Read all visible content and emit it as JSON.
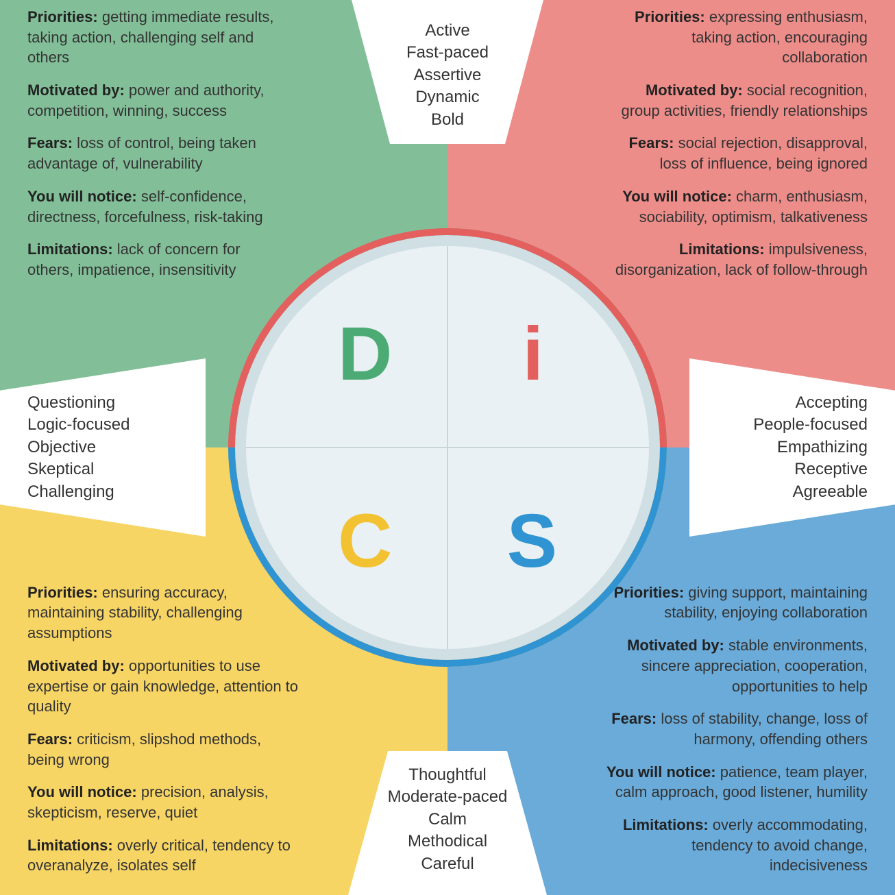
{
  "colors": {
    "d_bg": "#82bf98",
    "i_bg": "#ed8d8a",
    "c_bg": "#f7d565",
    "s_bg": "#6aabd9",
    "d_letter": "#4cab74",
    "i_letter": "#e3605e",
    "c_letter": "#f2c233",
    "s_letter": "#2f94d1",
    "circle_outer": "#d0dfe3",
    "circle_inner": "#e9f1f4",
    "text": "#333333"
  },
  "letters": {
    "d": "D",
    "i": "i",
    "c": "C",
    "s": "S"
  },
  "axis": {
    "top": [
      "Active",
      "Fast-paced",
      "Assertive",
      "Dynamic",
      "Bold"
    ],
    "bottom": [
      "Thoughtful",
      "Moderate-paced",
      "Calm",
      "Methodical",
      "Careful"
    ],
    "left": [
      "Questioning",
      "Logic-focused",
      "Objective",
      "Skeptical",
      "Challenging"
    ],
    "right": [
      "Accepting",
      "People-focused",
      "Empathizing",
      "Receptive",
      "Agreeable"
    ]
  },
  "quadrants": {
    "d": {
      "priorities": "getting immediate results, taking action, challenging self and others",
      "motivated": "power and authority, competition, winning, success",
      "fears": "loss of control, being taken advantage of, vulnerability",
      "notice": "self-confidence, directness, forcefulness, risk-taking",
      "limitations": "lack of concern for others, impatience, insensitivity"
    },
    "i": {
      "priorities": "expressing enthusiasm, taking action, encouraging collaboration",
      "motivated": "social recognition, group activities, friendly relationships",
      "fears": "social rejection, disapproval, loss of influence, being ignored",
      "notice": "charm, enthusiasm, sociability, optimism, talkativeness",
      "limitations": "impulsiveness, disorganization, lack of follow-through"
    },
    "c": {
      "priorities": "ensuring accuracy, maintaining stability, challenging assumptions",
      "motivated": "opportunities to use expertise or gain knowledge, attention to quality",
      "fears": "criticism, slipshod methods, being wrong",
      "notice": "precision, analysis, skepticism, reserve, quiet",
      "limitations": "overly critical, tendency to overanalyze, isolates self"
    },
    "s": {
      "priorities": "giving support, maintaining stability, enjoying collaboration",
      "motivated": "stable environments, sincere appreciation, cooperation, opportunities to help",
      "fears": "loss of stability, change, loss of harmony, offending others",
      "notice": "patience, team player, calm approach, good listener, humility",
      "limitations": "overly accommodating, tendency to avoid change, indecisiveness"
    }
  },
  "labels": {
    "priorities": "Priorities:",
    "motivated": "Motivated by:",
    "fears": "Fears:",
    "notice": "You will notice:",
    "limitations": "Limitations:"
  }
}
